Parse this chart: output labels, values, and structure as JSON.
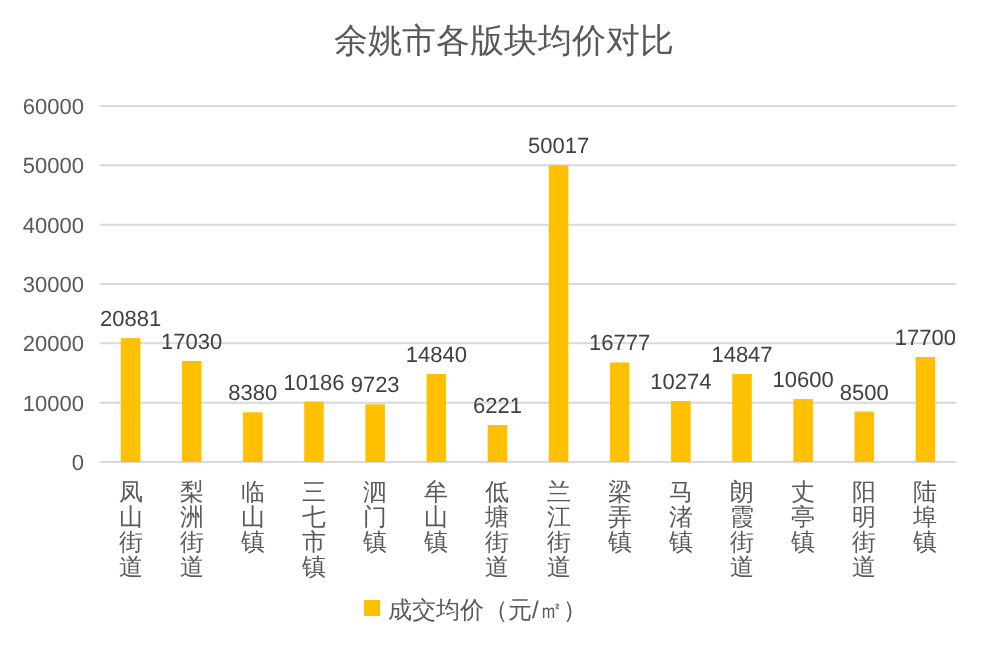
{
  "chart_data": {
    "type": "bar",
    "title": "余姚市各版块均价对比",
    "categories": [
      "凤山街道",
      "梨洲街道",
      "临山镇",
      "三七市镇",
      "泗门镇",
      "牟山镇",
      "低塘街道",
      "兰江街道",
      "梁弄镇",
      "马渚镇",
      "朗霞街道",
      "丈亭镇",
      "阳明街道",
      "陆埠镇"
    ],
    "series": [
      {
        "name": "成交均价（元/㎡）",
        "color": "#ffc000",
        "values": [
          20881,
          17030,
          8380,
          10186,
          9723,
          14840,
          6221,
          50017,
          16777,
          10274,
          14847,
          10600,
          8500,
          17700
        ]
      }
    ],
    "ylim": [
      0,
      60000
    ],
    "yticks": [
      0,
      10000,
      20000,
      30000,
      40000,
      50000,
      60000
    ],
    "grid": "y",
    "legend": "bottom",
    "data_labels": true
  }
}
